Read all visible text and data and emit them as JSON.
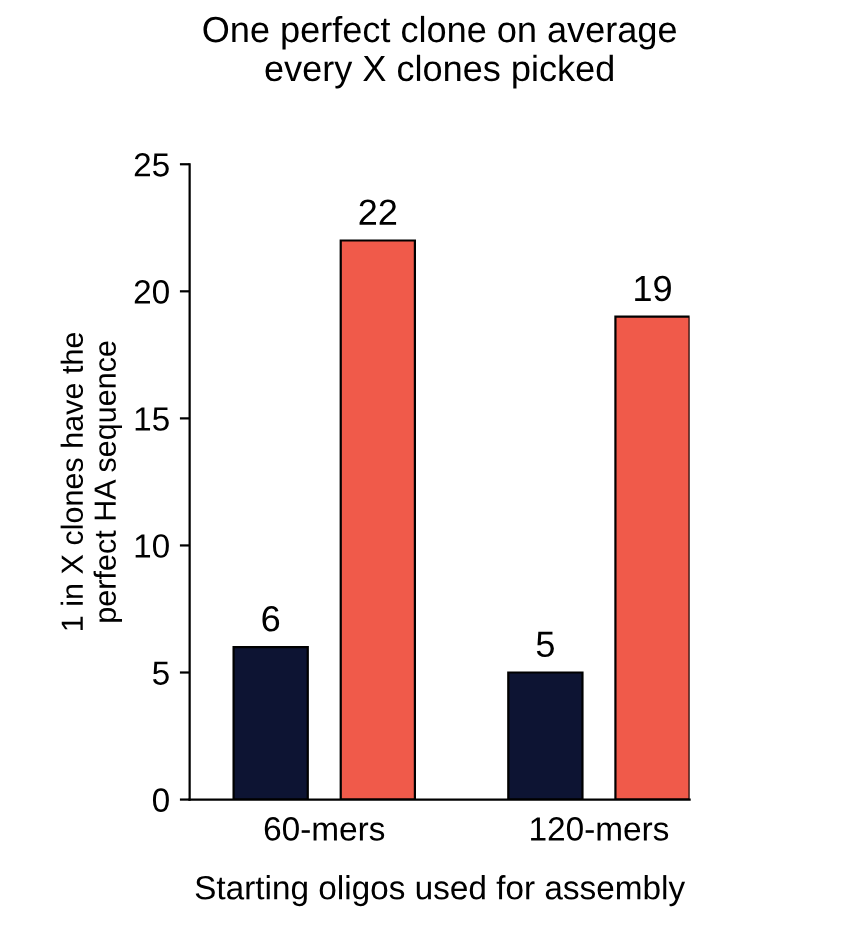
{
  "chart_data": {
    "type": "bar",
    "title": "One perfect clone on average\nevery X clones picked",
    "xlabel": "Starting oligos used for assembly",
    "ylabel": "1 in X clones have the\nperfect HA sequence",
    "categories": [
      "60-mers",
      "120-mers"
    ],
    "series": [
      {
        "color": "#0d1433",
        "values": [
          6,
          5
        ]
      },
      {
        "color": "#f05a4a",
        "values": [
          22,
          19
        ]
      }
    ],
    "ylim": [
      0,
      25
    ],
    "yticks": [
      0,
      5,
      10,
      15,
      20,
      25
    ],
    "data_labels": true,
    "grid": false,
    "legend": false
  }
}
